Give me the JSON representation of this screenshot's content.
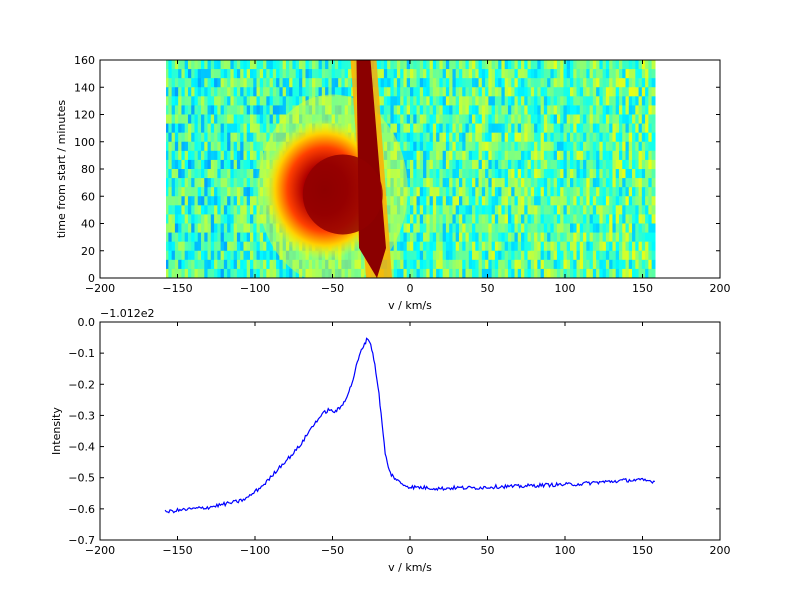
{
  "chart_data": [
    {
      "type": "heatmap",
      "xlabel": "v / km/s",
      "ylabel": "time from start / minutes",
      "xlim": [
        -200,
        200
      ],
      "ylim": [
        0,
        160
      ],
      "x_ticks": [
        "−200",
        "−150",
        "−100",
        "−50",
        "0",
        "50",
        "100",
        "150",
        "200"
      ],
      "y_ticks": [
        "0",
        "20",
        "40",
        "60",
        "80",
        "100",
        "120",
        "140",
        "160"
      ],
      "data_extent": {
        "v_min": -158,
        "v_max": 158,
        "t_min": 0,
        "t_max": 160
      },
      "colormap": "jet",
      "features": [
        {
          "description": "narrow emission ridge",
          "v_at_t0": -20,
          "v_at_t160": -30,
          "intensity": "max"
        },
        {
          "description": "broad blueshifted emission",
          "v_center": -55,
          "t_range": [
            40,
            90
          ],
          "intensity": "high"
        }
      ]
    },
    {
      "type": "line",
      "xlabel": "v / km/s",
      "ylabel": "Intensity",
      "offset_text": "−1.012e2",
      "xlim": [
        -200,
        200
      ],
      "ylim": [
        -0.7,
        0.0
      ],
      "x_ticks": [
        "−200",
        "−150",
        "−100",
        "−50",
        "0",
        "50",
        "100",
        "150",
        "200"
      ],
      "y_ticks": [
        "−0.7",
        "−0.6",
        "−0.5",
        "−0.4",
        "−0.3",
        "−0.2",
        "−0.1",
        "0.0"
      ],
      "series": [
        {
          "color": "#0000ff",
          "x": [
            -158,
            -150,
            -140,
            -130,
            -120,
            -110,
            -105,
            -100,
            -95,
            -90,
            -85,
            -80,
            -75,
            -70,
            -65,
            -60,
            -55,
            -52,
            -50,
            -48,
            -46,
            -44,
            -42,
            -40,
            -38,
            -36,
            -34,
            -32,
            -30,
            -28,
            -27,
            -26,
            -24,
            -22,
            -20,
            -18,
            -16,
            -14,
            -12,
            -10,
            -8,
            -5,
            0,
            10,
            20,
            30,
            40,
            50,
            60,
            70,
            80,
            90,
            100,
            110,
            120,
            130,
            140,
            150,
            158
          ],
          "y": [
            -0.61,
            -0.605,
            -0.6,
            -0.595,
            -0.585,
            -0.575,
            -0.565,
            -0.545,
            -0.525,
            -0.5,
            -0.47,
            -0.445,
            -0.42,
            -0.39,
            -0.35,
            -0.315,
            -0.29,
            -0.28,
            -0.29,
            -0.285,
            -0.28,
            -0.27,
            -0.25,
            -0.23,
            -0.205,
            -0.17,
            -0.13,
            -0.1,
            -0.075,
            -0.058,
            -0.055,
            -0.06,
            -0.1,
            -0.16,
            -0.23,
            -0.33,
            -0.42,
            -0.47,
            -0.49,
            -0.5,
            -0.51,
            -0.52,
            -0.53,
            -0.532,
            -0.535,
            -0.532,
            -0.533,
            -0.53,
            -0.528,
            -0.528,
            -0.525,
            -0.523,
            -0.522,
            -0.52,
            -0.515,
            -0.512,
            -0.508,
            -0.508,
            -0.512
          ]
        }
      ]
    }
  ]
}
